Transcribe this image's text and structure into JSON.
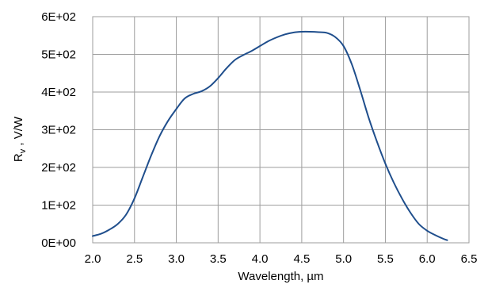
{
  "chart_data": {
    "type": "line",
    "title": "",
    "xlabel": "Wavelength, µm",
    "ylabel": {
      "main": "R",
      "sub": "v",
      "rest": " ,  V/W"
    },
    "xlim": [
      2.0,
      6.5
    ],
    "ylim": [
      0,
      600
    ],
    "x_ticks": [
      2.0,
      2.5,
      3.0,
      3.5,
      4.0,
      4.5,
      5.0,
      5.5,
      6.0,
      6.5
    ],
    "x_tick_labels": [
      "2.0",
      "2.5",
      "3.0",
      "3.5",
      "4.0",
      "4.5",
      "5.0",
      "5.5",
      "6.0",
      "6.5"
    ],
    "y_ticks": [
      0,
      100,
      200,
      300,
      400,
      500,
      600
    ],
    "y_tick_labels": [
      "0E+00",
      "1E+02",
      "2E+02",
      "3E+02",
      "4E+02",
      "5E+02",
      "6E+02"
    ],
    "grid": true,
    "legend": "none",
    "series": [
      {
        "color": "#1f4e8c",
        "x": [
          2.0,
          2.1,
          2.2,
          2.3,
          2.4,
          2.5,
          2.6,
          2.7,
          2.8,
          2.9,
          3.0,
          3.1,
          3.2,
          3.3,
          3.4,
          3.5,
          3.6,
          3.7,
          3.8,
          3.9,
          4.0,
          4.1,
          4.2,
          4.3,
          4.4,
          4.5,
          4.6,
          4.7,
          4.8,
          4.9,
          5.0,
          5.1,
          5.2,
          5.3,
          5.4,
          5.5,
          5.6,
          5.7,
          5.8,
          5.9,
          6.0,
          6.1,
          6.2,
          6.24
        ],
        "y": [
          18,
          24,
          35,
          50,
          75,
          118,
          175,
          232,
          283,
          323,
          355,
          383,
          395,
          402,
          415,
          437,
          463,
          485,
          498,
          509,
          522,
          535,
          545,
          553,
          558,
          560,
          560,
          559,
          557,
          546,
          522,
          473,
          405,
          332,
          268,
          210,
          160,
          117,
          80,
          50,
          32,
          20,
          10,
          7
        ]
      }
    ]
  }
}
